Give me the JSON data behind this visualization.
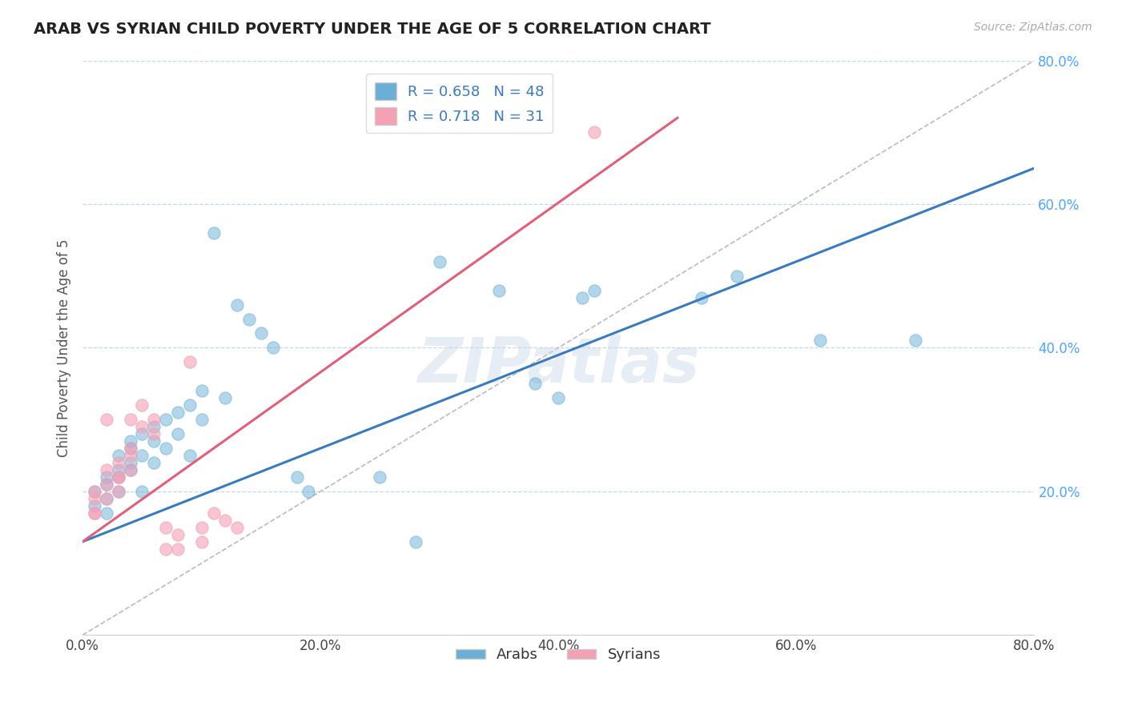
{
  "title": "ARAB VS SYRIAN CHILD POVERTY UNDER THE AGE OF 5 CORRELATION CHART",
  "source": "Source: ZipAtlas.com",
  "ylabel": "Child Poverty Under the Age of 5",
  "xlim": [
    0.0,
    0.8
  ],
  "ylim": [
    0.0,
    0.8
  ],
  "xtick_vals": [
    0.0,
    0.2,
    0.4,
    0.6,
    0.8
  ],
  "xtick_labels": [
    "0.0%",
    "20.0%",
    "40.0%",
    "60.0%",
    "80.0%"
  ],
  "ytick_vals": [
    0.2,
    0.4,
    0.6,
    0.8
  ],
  "ytick_labels": [
    "20.0%",
    "40.0%",
    "60.0%",
    "80.0%"
  ],
  "arab_color": "#6baed6",
  "syrian_color": "#f4a0b5",
  "arab_line_color": "#3a7abf",
  "syrian_line_color": "#e0607a",
  "arab_R": 0.658,
  "arab_N": 48,
  "syrian_R": 0.718,
  "syrian_N": 31,
  "legend_label_arab": "Arabs",
  "legend_label_syrian": "Syrians",
  "watermark": "ZIPatlas",
  "arab_points": [
    [
      0.01,
      0.18
    ],
    [
      0.01,
      0.2
    ],
    [
      0.02,
      0.22
    ],
    [
      0.02,
      0.19
    ],
    [
      0.02,
      0.17
    ],
    [
      0.02,
      0.21
    ],
    [
      0.03,
      0.23
    ],
    [
      0.03,
      0.2
    ],
    [
      0.03,
      0.25
    ],
    [
      0.03,
      0.22
    ],
    [
      0.04,
      0.27
    ],
    [
      0.04,
      0.23
    ],
    [
      0.04,
      0.26
    ],
    [
      0.04,
      0.24
    ],
    [
      0.05,
      0.28
    ],
    [
      0.05,
      0.25
    ],
    [
      0.05,
      0.2
    ],
    [
      0.06,
      0.29
    ],
    [
      0.06,
      0.27
    ],
    [
      0.06,
      0.24
    ],
    [
      0.07,
      0.3
    ],
    [
      0.07,
      0.26
    ],
    [
      0.08,
      0.31
    ],
    [
      0.08,
      0.28
    ],
    [
      0.09,
      0.32
    ],
    [
      0.09,
      0.25
    ],
    [
      0.1,
      0.34
    ],
    [
      0.1,
      0.3
    ],
    [
      0.11,
      0.56
    ],
    [
      0.12,
      0.33
    ],
    [
      0.13,
      0.46
    ],
    [
      0.14,
      0.44
    ],
    [
      0.15,
      0.42
    ],
    [
      0.16,
      0.4
    ],
    [
      0.18,
      0.22
    ],
    [
      0.19,
      0.2
    ],
    [
      0.25,
      0.22
    ],
    [
      0.28,
      0.13
    ],
    [
      0.3,
      0.52
    ],
    [
      0.35,
      0.48
    ],
    [
      0.38,
      0.35
    ],
    [
      0.4,
      0.33
    ],
    [
      0.42,
      0.47
    ],
    [
      0.43,
      0.48
    ],
    [
      0.52,
      0.47
    ],
    [
      0.55,
      0.5
    ],
    [
      0.62,
      0.41
    ],
    [
      0.7,
      0.41
    ]
  ],
  "syrian_points": [
    [
      0.01,
      0.17
    ],
    [
      0.01,
      0.19
    ],
    [
      0.01,
      0.2
    ],
    [
      0.01,
      0.17
    ],
    [
      0.02,
      0.21
    ],
    [
      0.02,
      0.23
    ],
    [
      0.02,
      0.19
    ],
    [
      0.02,
      0.3
    ],
    [
      0.03,
      0.22
    ],
    [
      0.03,
      0.2
    ],
    [
      0.03,
      0.24
    ],
    [
      0.03,
      0.22
    ],
    [
      0.04,
      0.25
    ],
    [
      0.04,
      0.23
    ],
    [
      0.04,
      0.26
    ],
    [
      0.04,
      0.3
    ],
    [
      0.05,
      0.32
    ],
    [
      0.05,
      0.29
    ],
    [
      0.06,
      0.3
    ],
    [
      0.06,
      0.28
    ],
    [
      0.07,
      0.12
    ],
    [
      0.07,
      0.15
    ],
    [
      0.08,
      0.14
    ],
    [
      0.08,
      0.12
    ],
    [
      0.09,
      0.38
    ],
    [
      0.1,
      0.15
    ],
    [
      0.1,
      0.13
    ],
    [
      0.11,
      0.17
    ],
    [
      0.12,
      0.16
    ],
    [
      0.13,
      0.15
    ],
    [
      0.43,
      0.7
    ]
  ]
}
